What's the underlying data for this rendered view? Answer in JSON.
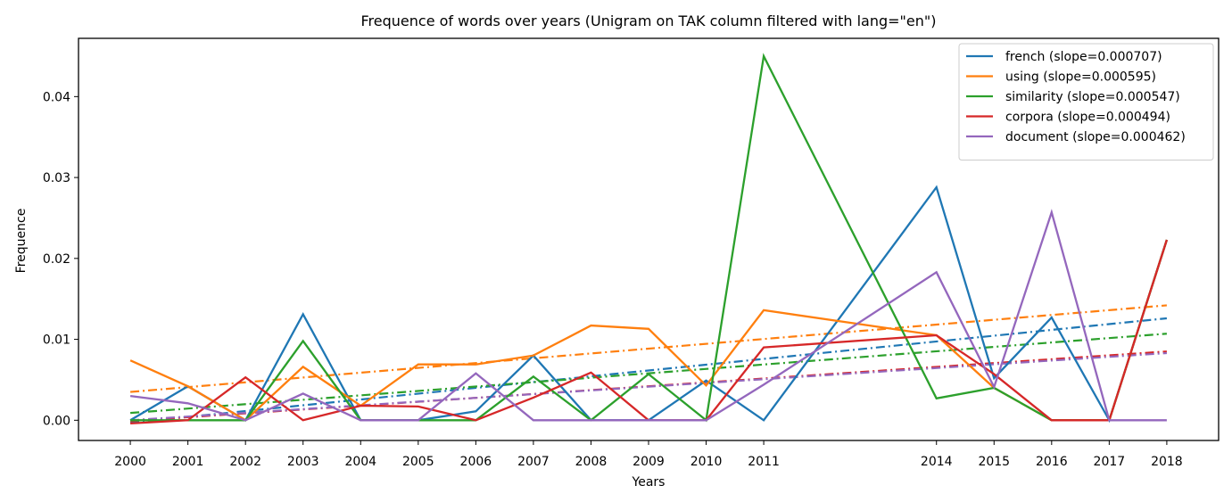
{
  "chart_data": {
    "type": "line",
    "title": "Frequence of words over years (Unigram on TAK column filtered with lang=\"en\")",
    "xlabel": "Years",
    "ylabel": "Frequence",
    "x": [
      2000,
      2001,
      2002,
      2003,
      2004,
      2005,
      2006,
      2007,
      2008,
      2009,
      2010,
      2011,
      2014,
      2015,
      2016,
      2017,
      2018
    ],
    "xlim": [
      1999.1,
      2018.9
    ],
    "ylim": [
      -0.0025,
      0.0472
    ],
    "yticks": [
      0.0,
      0.01,
      0.02,
      0.03,
      0.04
    ],
    "ytick_labels": [
      "0.00",
      "0.01",
      "0.02",
      "0.03",
      "0.04"
    ],
    "legend_position": "top-right",
    "grid": false,
    "series": [
      {
        "name": "french (slope=0.000707)",
        "color": "#1f77b4",
        "values": [
          0.0,
          0.0042,
          0.0,
          0.0131,
          0.0,
          0.0,
          0.0011,
          0.008,
          0.0,
          0.0,
          0.0049,
          0.0,
          0.0288,
          0.0052,
          0.0127,
          0.0,
          0.0223
        ],
        "trend": [
          -0.0003,
          0.0126
        ]
      },
      {
        "name": "using (slope=0.000595)",
        "color": "#ff7f0e",
        "values": [
          0.0074,
          0.0042,
          0.0,
          0.0066,
          0.0018,
          0.0069,
          0.0069,
          0.008,
          0.0117,
          0.0113,
          0.0043,
          0.0136,
          0.0105,
          0.004,
          0.0,
          0.0,
          0.0223
        ],
        "trend": [
          0.0035,
          0.0142
        ]
      },
      {
        "name": "similarity (slope=0.000547)",
        "color": "#2ca02c",
        "values": [
          0.0,
          0.0,
          0.0,
          0.0098,
          0.0,
          0.0,
          0.0,
          0.0054,
          0.0,
          0.0057,
          0.0,
          0.045,
          0.0027,
          0.004,
          0.0,
          0.0,
          0.0223
        ],
        "trend": [
          0.0009,
          0.0107
        ]
      },
      {
        "name": "corpora (slope=0.000494)",
        "color": "#d62728",
        "values": [
          -0.0004,
          0.0,
          0.0053,
          0.0,
          0.0018,
          0.0017,
          0.0,
          0.0028,
          0.0059,
          0.0,
          0.0,
          0.009,
          0.0105,
          0.0057,
          0.0,
          0.0,
          0.0223
        ],
        "trend": [
          -0.0001,
          0.0085
        ]
      },
      {
        "name": "document (slope=0.000462)",
        "color": "#9467bd",
        "values": [
          0.003,
          0.0021,
          0.0,
          0.0033,
          0.0,
          0.0,
          0.0058,
          0.0,
          0.0,
          0.0,
          0.0,
          0.0044,
          0.0183,
          0.0041,
          0.0257,
          0.0,
          0.0
        ],
        "trend": [
          0.0,
          0.0083
        ]
      }
    ]
  }
}
